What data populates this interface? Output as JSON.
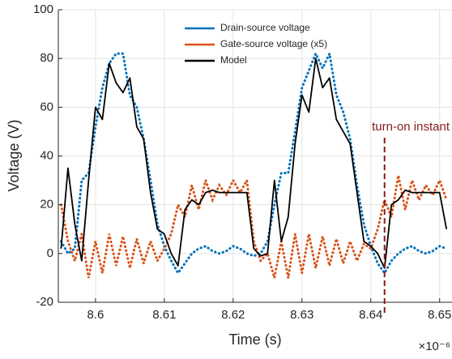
{
  "chart_data": {
    "type": "line",
    "xlabel": "Time (s)",
    "ylabel": "Voltage (V)",
    "x_multiplier": "×10⁻⁶",
    "x": [
      8.595,
      8.596,
      8.597,
      8.598,
      8.599,
      8.6,
      8.601,
      8.602,
      8.603,
      8.604,
      8.605,
      8.606,
      8.607,
      8.608,
      8.609,
      8.61,
      8.611,
      8.612,
      8.613,
      8.614,
      8.615,
      8.616,
      8.617,
      8.618,
      8.619,
      8.62,
      8.621,
      8.622,
      8.623,
      8.624,
      8.625,
      8.626,
      8.627,
      8.628,
      8.629,
      8.63,
      8.631,
      8.632,
      8.633,
      8.634,
      8.635,
      8.636,
      8.637,
      8.638,
      8.639,
      8.64,
      8.641,
      8.642,
      8.643,
      8.644,
      8.645,
      8.646,
      8.647,
      8.648,
      8.649,
      8.65,
      8.651
    ],
    "series": [
      {
        "name": "Drain-source voltage",
        "color": "#0072bd",
        "style": "dotted",
        "values": [
          5,
          0,
          2,
          30,
          33,
          52,
          68,
          78,
          82,
          82,
          65,
          60,
          47,
          30,
          12,
          3,
          -3,
          -8,
          -4,
          0,
          2,
          3,
          1,
          0,
          1,
          3,
          2,
          0,
          -1,
          0,
          5,
          20,
          33,
          33,
          50,
          68,
          75,
          82,
          76,
          82,
          65,
          58,
          47,
          28,
          12,
          3,
          -4,
          -8,
          -3,
          0,
          2,
          3,
          1,
          0,
          1,
          3,
          2
        ]
      },
      {
        "name": "Gate-source voltage (x5)",
        "color": "#d95319",
        "style": "dotted",
        "values": [
          20,
          5,
          -3,
          8,
          -10,
          5,
          -8,
          8,
          -5,
          7,
          -6,
          6,
          -4,
          5,
          -3,
          2,
          8,
          20,
          15,
          28,
          18,
          30,
          22,
          28,
          24,
          30,
          25,
          30,
          5,
          -3,
          0,
          -10,
          5,
          -10,
          8,
          -8,
          8,
          -6,
          7,
          -5,
          6,
          -4,
          5,
          -3,
          4,
          2,
          10,
          22,
          15,
          32,
          18,
          30,
          22,
          28,
          24,
          30,
          22
        ]
      },
      {
        "name": "Model",
        "color": "#000000",
        "style": "solid",
        "values": [
          2,
          35,
          12,
          -3,
          30,
          60,
          55,
          78,
          70,
          66,
          72,
          52,
          47,
          25,
          10,
          8,
          0,
          -5,
          18,
          22,
          20,
          25,
          26,
          25,
          25,
          25,
          25,
          25,
          2,
          -1,
          0,
          30,
          5,
          15,
          45,
          65,
          58,
          80,
          68,
          72,
          55,
          50,
          45,
          25,
          5,
          3,
          0,
          -6,
          20,
          22,
          26,
          25,
          25,
          25,
          25,
          25,
          10
        ]
      }
    ],
    "xlim": [
      8.5946,
      8.6518
    ],
    "ylim": [
      -20,
      100
    ],
    "xticks": [
      8.6,
      8.61,
      8.62,
      8.63,
      8.64,
      8.65
    ],
    "yticks": [
      -20,
      0,
      20,
      40,
      60,
      80,
      100
    ],
    "grid": true,
    "annotation": {
      "text": "turn-on instant",
      "x": 8.642,
      "color": "#8b1a1a"
    }
  }
}
